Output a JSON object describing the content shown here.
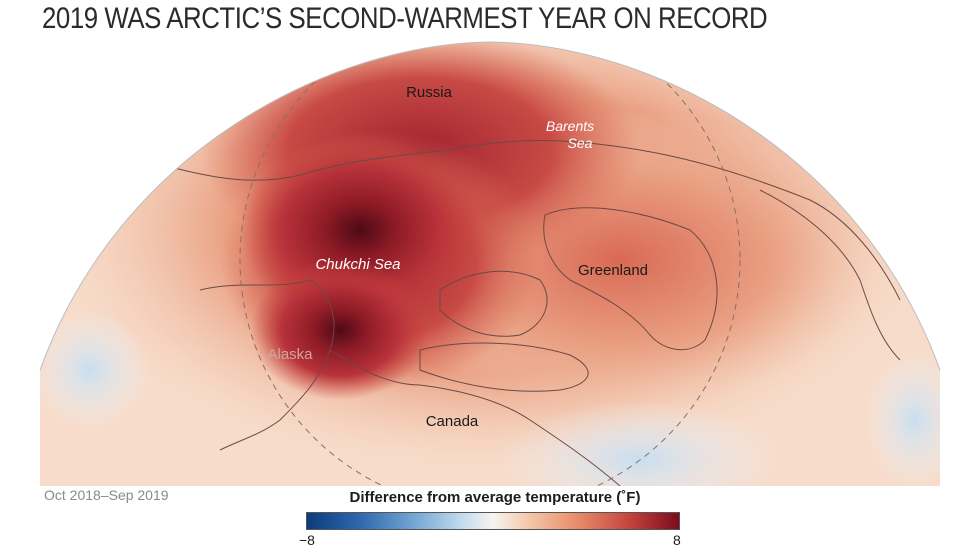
{
  "title": "2019 WAS ARCTIC’S SECOND-WARMEST YEAR ON RECORD",
  "period": "Oct 2018–Sep 2019",
  "map": {
    "labels": {
      "russia": "Russia",
      "barents": [
        "Barents",
        "Sea"
      ],
      "chukchi": "Chukchi Sea",
      "greenland": "Greenland",
      "alaska": "Alaska",
      "canada": "Canada"
    }
  },
  "legend": {
    "title": "Difference from average temperature (˚F)",
    "min": "−8",
    "max": "8",
    "colors": [
      "#0b3c7d",
      "#6fa3d1",
      "#f7f4f0",
      "#e98f6e",
      "#7a0c1e"
    ]
  }
}
